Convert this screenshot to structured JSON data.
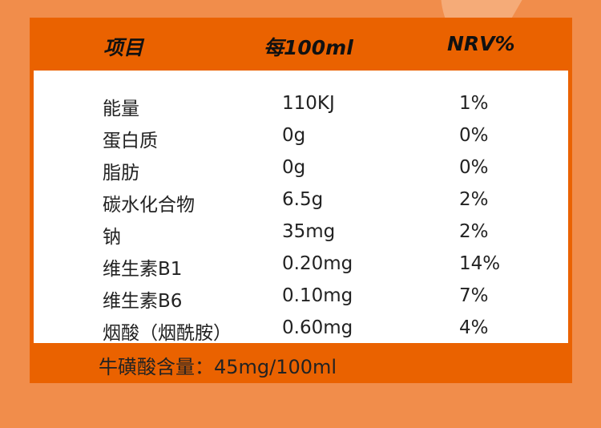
{
  "colors": {
    "background": "#f18d4b",
    "panel": "#ea6200",
    "table": "#ffffff"
  },
  "header": {
    "item": "项目",
    "per100": "每100ml",
    "nrv": "NRV%"
  },
  "rows": [
    {
      "name": "能量",
      "value": "110KJ",
      "nrv": "1%"
    },
    {
      "name": "蛋白质",
      "value": "0g",
      "nrv": "0%"
    },
    {
      "name": "脂肪",
      "value": "0g",
      "nrv": "0%"
    },
    {
      "name": "碳水化合物",
      "value": "6.5g",
      "nrv": "2%"
    },
    {
      "name": "钠",
      "value": "35mg",
      "nrv": "2%"
    },
    {
      "name": "维生素B1",
      "value": "0.20mg",
      "nrv": "14%"
    },
    {
      "name": "维生素B6",
      "value": "0.10mg",
      "nrv": "7%"
    },
    {
      "name": "烟酸（烟酰胺）",
      "value": "0.60mg",
      "nrv": "4%"
    }
  ],
  "footer": "牛磺酸含量：45mg/100ml"
}
